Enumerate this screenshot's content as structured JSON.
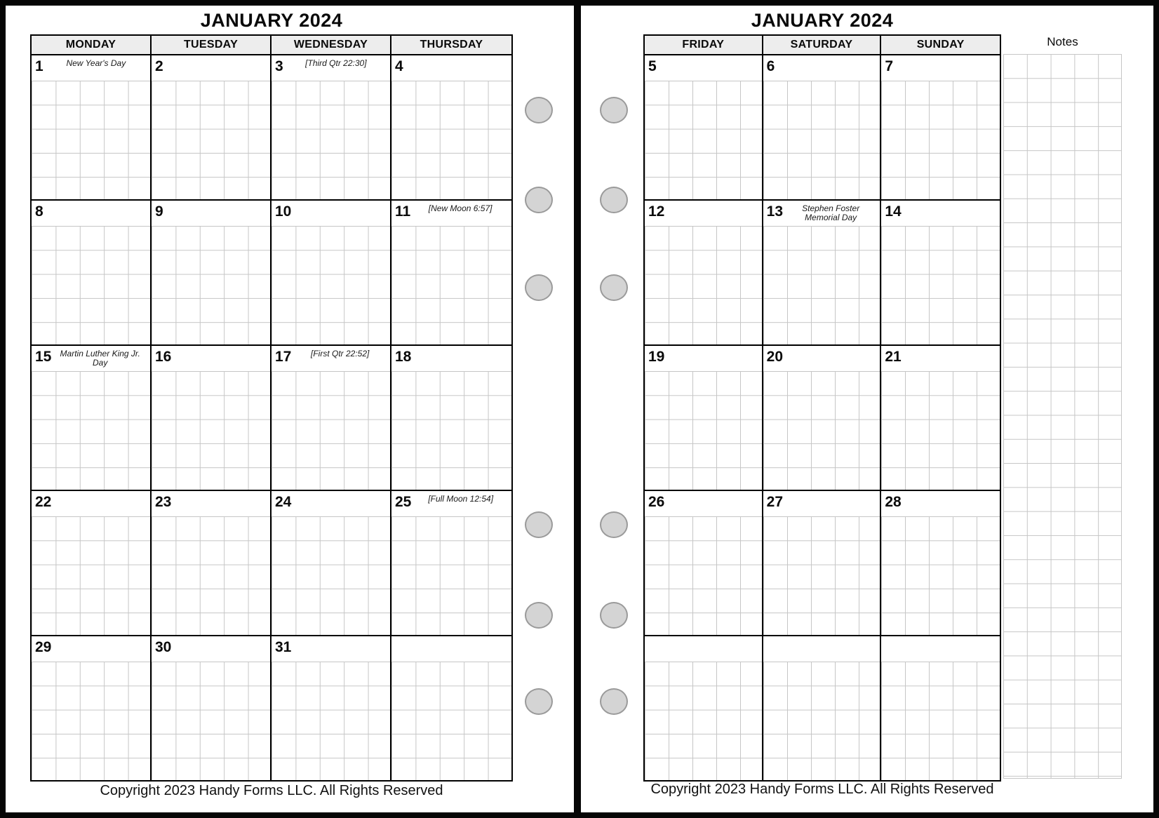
{
  "pages": {
    "left": {
      "title": "JANUARY 2024",
      "day_headers": [
        "MONDAY",
        "TUESDAY",
        "WEDNESDAY",
        "THURSDAY"
      ],
      "weeks": [
        [
          {
            "num": "1",
            "note": "New Year's Day"
          },
          {
            "num": "2"
          },
          {
            "num": "3",
            "note": "[Third Qtr 22:30]"
          },
          {
            "num": "4"
          }
        ],
        [
          {
            "num": "8"
          },
          {
            "num": "9"
          },
          {
            "num": "10"
          },
          {
            "num": "11",
            "note": "[New Moon 6:57]"
          }
        ],
        [
          {
            "num": "15",
            "note": "Martin Luther King Jr. Day"
          },
          {
            "num": "16"
          },
          {
            "num": "17",
            "note": "[First Qtr 22:52]"
          },
          {
            "num": "18"
          }
        ],
        [
          {
            "num": "22"
          },
          {
            "num": "23"
          },
          {
            "num": "24"
          },
          {
            "num": "25",
            "note": "[Full Moon 12:54]"
          }
        ],
        [
          {
            "num": "29"
          },
          {
            "num": "30"
          },
          {
            "num": "31"
          },
          {}
        ]
      ],
      "copyright": "Copyright 2023 Handy Forms LLC. All Rights Reserved"
    },
    "right": {
      "title": "JANUARY 2024",
      "day_headers": [
        "FRIDAY",
        "SATURDAY",
        "SUNDAY"
      ],
      "notes_label": "Notes",
      "weeks": [
        [
          {
            "num": "5"
          },
          {
            "num": "6"
          },
          {
            "num": "7"
          }
        ],
        [
          {
            "num": "12"
          },
          {
            "num": "13",
            "note": "Stephen Foster Memorial Day"
          },
          {
            "num": "14"
          }
        ],
        [
          {
            "num": "19"
          },
          {
            "num": "20"
          },
          {
            "num": "21"
          }
        ],
        [
          {
            "num": "26"
          },
          {
            "num": "27"
          },
          {
            "num": "28"
          }
        ],
        [
          {},
          {},
          {}
        ]
      ],
      "copyright": "Copyright 2023 Handy Forms LLC. All Rights Reserved"
    }
  },
  "colors": {
    "header_bg": "#ededed",
    "grid_line": "#c6c6c6",
    "table_line": "#000000",
    "hole_fill": "#d4d4d4",
    "hole_border": "#9a9a9a",
    "frame": "#060606"
  }
}
